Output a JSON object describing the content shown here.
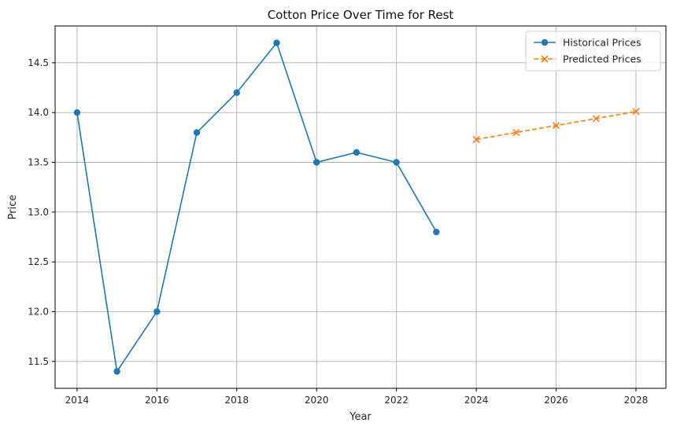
{
  "chart_data": {
    "type": "line",
    "title": "Cotton Price Over Time for Rest",
    "xlabel": "Year",
    "ylabel": "Price",
    "xlim": [
      2013.45,
      2028.75
    ],
    "ylim": [
      11.23,
      14.87
    ],
    "xticks": [
      2014,
      2016,
      2018,
      2020,
      2022,
      2024,
      2026,
      2028
    ],
    "yticks": [
      11.5,
      12.0,
      12.5,
      13.0,
      13.5,
      14.0,
      14.5
    ],
    "xtick_labels": [
      "2014",
      "2016",
      "2018",
      "2020",
      "2022",
      "2024",
      "2026",
      "2028"
    ],
    "ytick_labels": [
      "11.5",
      "12.0",
      "12.5",
      "13.0",
      "13.5",
      "14.0",
      "14.5"
    ],
    "grid": true,
    "legend_position": "top-right",
    "series": [
      {
        "name": "Historical Prices",
        "color": "#1f77b4",
        "line_style": "solid",
        "marker": "circle",
        "x": [
          2014,
          2015,
          2016,
          2017,
          2018,
          2019,
          2020,
          2021,
          2022,
          2023
        ],
        "y": [
          14.0,
          11.4,
          12.0,
          13.8,
          14.2,
          14.7,
          13.5,
          13.6,
          13.5,
          12.8
        ]
      },
      {
        "name": "Predicted Prices",
        "color": "#ff7f0e",
        "line_style": "dashed",
        "marker": "x",
        "x": [
          2024,
          2025,
          2026,
          2027,
          2028
        ],
        "y": [
          13.73,
          13.8,
          13.87,
          13.94,
          14.01
        ]
      }
    ]
  }
}
